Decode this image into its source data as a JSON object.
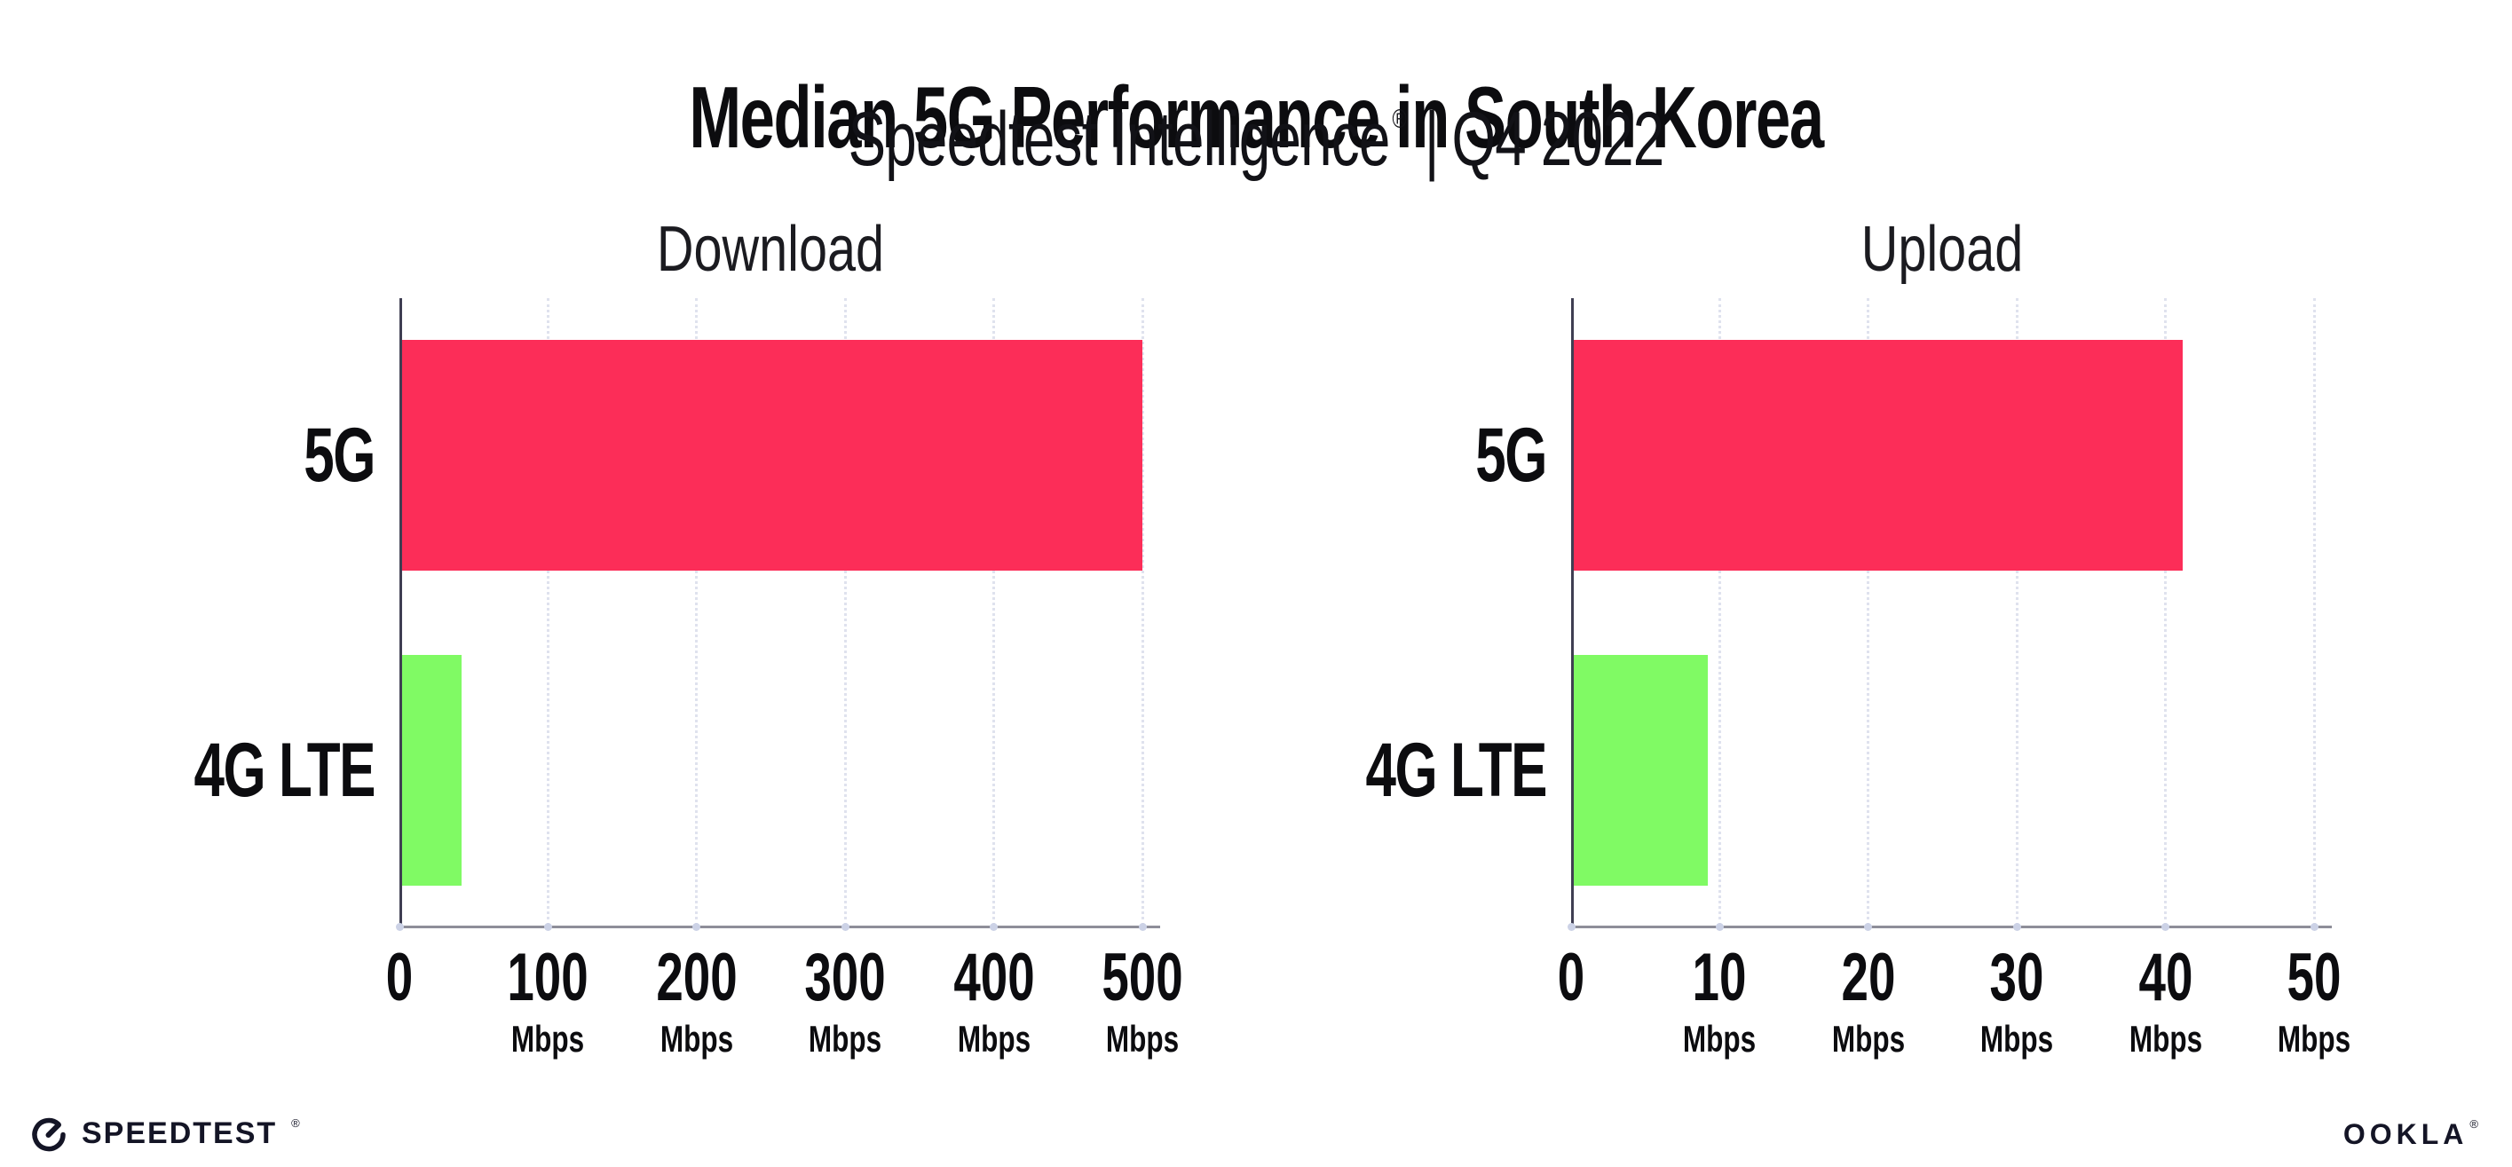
{
  "header": {
    "title": "Median 5G Performance in South Korea",
    "subtitle": {
      "brand": "Speedtest Intelligence",
      "registered": "®",
      "separator": "|",
      "period": "Q4 2022"
    }
  },
  "chart_data": [
    {
      "type": "bar",
      "orientation": "horizontal",
      "title": "Download",
      "categories": [
        "5G",
        "4G LTE"
      ],
      "values": [
        498,
        40
      ],
      "unit": "Mbps",
      "xlim": [
        0,
        500
      ],
      "xticks": [
        0,
        100,
        200,
        300,
        400,
        500
      ],
      "tick_suffix": "Mbps",
      "bar_colors": [
        "#FC2D58",
        "#80FA64"
      ],
      "grid": "dotted vertical gridlines",
      "legend": "none"
    },
    {
      "type": "bar",
      "orientation": "horizontal",
      "title": "Upload",
      "categories": [
        "5G",
        "4G LTE"
      ],
      "values": [
        41,
        9
      ],
      "unit": "Mbps",
      "xlim": [
        0,
        50
      ],
      "xticks": [
        0,
        10,
        20,
        30,
        40,
        50
      ],
      "tick_suffix": "Mbps",
      "bar_colors": [
        "#FC2D58",
        "#80FA64"
      ],
      "grid": "dotted vertical gridlines",
      "legend": "none"
    }
  ],
  "footer": {
    "speedtest_label": "SPEEDTEST",
    "speedtest_registered": "®",
    "ookla_label": "OOKLA",
    "ookla_registered": "®"
  },
  "colors": {
    "bar_5g": "#FC2D58",
    "bar_4g_lte": "#80FA64",
    "text": "#0c0c0f",
    "y_axis": "#3f3e52",
    "x_axis": "#8e8e99",
    "gridline": "#dfe2ee",
    "tick_dot": "#ccd2e6",
    "logo": "#141526"
  }
}
